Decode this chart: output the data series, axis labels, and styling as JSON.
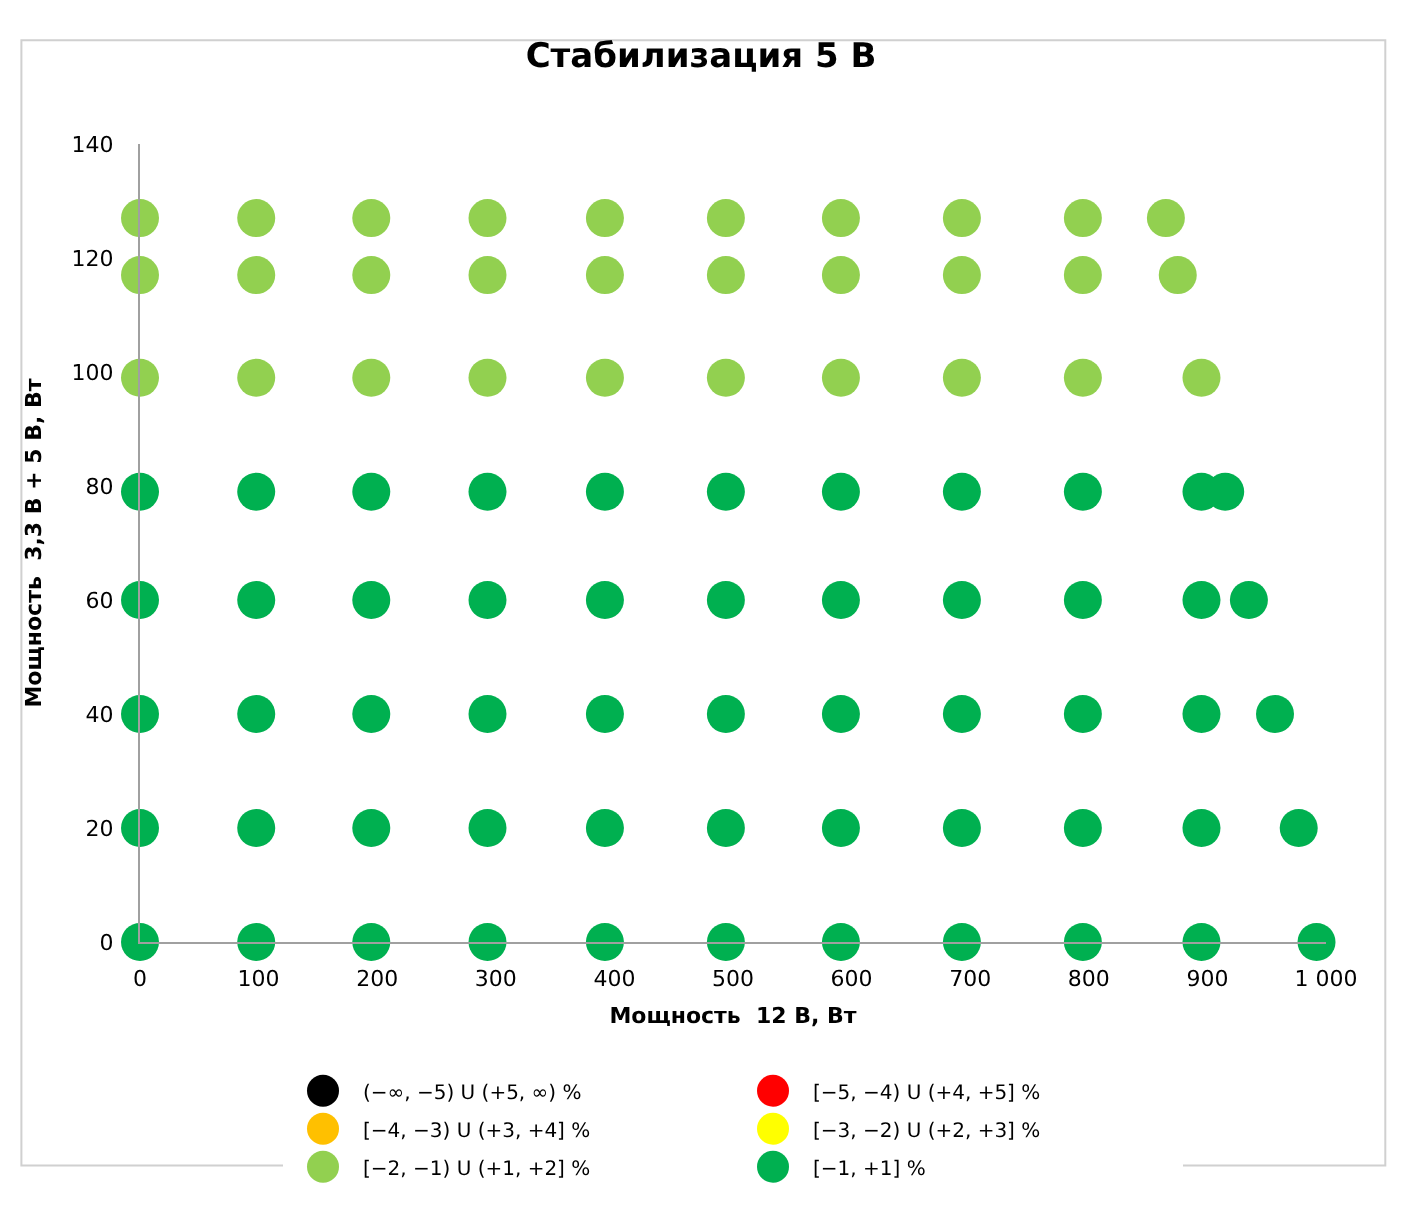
{
  "chart_data": {
    "type": "scatter",
    "title": "Стабилизация 5 В",
    "xlabel": "Мощность  12 В, Вт",
    "ylabel": "Мощность  3,3 В + 5 В, Вт",
    "xlim": [
      0,
      1000
    ],
    "xticks": [
      0,
      100,
      200,
      300,
      400,
      500,
      600,
      700,
      800,
      900,
      {
        "value": 1000,
        "label": "1 000"
      }
    ],
    "ylim": [
      0,
      140
    ],
    "yticks": [
      0,
      20,
      40,
      60,
      80,
      100,
      120,
      140
    ],
    "grid": false,
    "legend": "bottom",
    "marker": "circle",
    "series": [
      {
        "name": "(−∞, −5) U (+5, ∞) %",
        "color": "#000000"
      },
      {
        "name": "[−5, −4) U (+4, +5] %",
        "color": "#ff0000"
      },
      {
        "name": "[−4, −3) U (+3, +4] %",
        "color": "#ffc000"
      },
      {
        "name": "[−3, −2) U (+2, +3] %",
        "color": "#ffff00"
      },
      {
        "name": "[−2, −1) U (+1, +2] %",
        "color": "#92d050",
        "x": [
          0,
          98,
          195,
          293,
          392,
          494,
          591,
          693,
          795,
          865,
          0,
          98,
          195,
          293,
          392,
          494,
          591,
          693,
          795,
          875,
          0,
          98,
          195,
          293,
          392,
          494,
          591,
          693,
          795,
          895
        ],
        "values": [
          127,
          127,
          127,
          127,
          127,
          127,
          127,
          127,
          127,
          127,
          117,
          117,
          117,
          117,
          117,
          117,
          117,
          117,
          117,
          117,
          99,
          99,
          99,
          99,
          99,
          99,
          99,
          99,
          99,
          99
        ]
      },
      {
        "name": "[−1, +1] %",
        "color": "#00b050",
        "x": [
          0,
          98,
          195,
          293,
          392,
          494,
          591,
          693,
          795,
          895,
          915,
          0,
          98,
          195,
          293,
          392,
          494,
          591,
          693,
          795,
          895,
          935,
          0,
          98,
          195,
          293,
          392,
          494,
          591,
          693,
          795,
          895,
          957,
          0,
          98,
          195,
          293,
          392,
          494,
          591,
          693,
          795,
          895,
          977,
          0,
          98,
          195,
          293,
          392,
          494,
          591,
          693,
          795,
          895,
          992
        ],
        "values": [
          79,
          79,
          79,
          79,
          79,
          79,
          79,
          79,
          79,
          79,
          79,
          60,
          60,
          60,
          60,
          60,
          60,
          60,
          60,
          60,
          60,
          60,
          40,
          40,
          40,
          40,
          40,
          40,
          40,
          40,
          40,
          40,
          40,
          20,
          20,
          20,
          20,
          20,
          20,
          20,
          20,
          20,
          20,
          20,
          0,
          0,
          0,
          0,
          0,
          0,
          0,
          0,
          0,
          0,
          0
        ]
      }
    ]
  }
}
